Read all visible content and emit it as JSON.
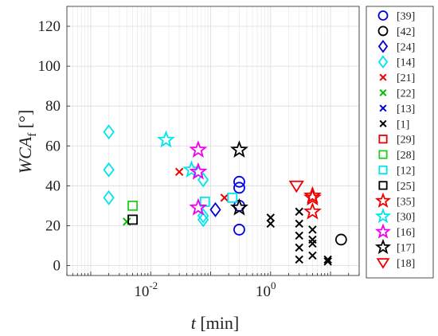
{
  "chart_data": {
    "type": "scatter",
    "x_scale": "log",
    "xlim": [
      0.0004,
      30
    ],
    "ylim": [
      -5,
      130
    ],
    "x_ticks": [
      0.01,
      1
    ],
    "x_tick_labels": [
      {
        "base": "10",
        "exp": "-2"
      },
      {
        "base": "10",
        "exp": "0"
      }
    ],
    "y_ticks": [
      0,
      20,
      40,
      60,
      80,
      100,
      120
    ],
    "y_tick_labels": [
      "0",
      "20",
      "40",
      "60",
      "80",
      "100",
      "120"
    ],
    "xlabel": {
      "var": "t",
      "unit": " [min]"
    },
    "ylabel": {
      "var": "WCA",
      "sub": "f",
      "unit": " [°]"
    },
    "grid": true,
    "legend_position": "right-outside",
    "series": [
      {
        "name": "[39]",
        "marker": "circle",
        "color": "#0000ee",
        "points": [
          [
            0.3,
            42
          ],
          [
            0.3,
            39
          ],
          [
            0.3,
            30
          ],
          [
            0.3,
            18
          ]
        ]
      },
      {
        "name": "[42]",
        "marker": "circle",
        "color": "#000000",
        "points": [
          [
            15,
            13
          ]
        ]
      },
      {
        "name": "[24]",
        "marker": "diamond",
        "color": "#0000cc",
        "points": [
          [
            0.12,
            28
          ]
        ]
      },
      {
        "name": "[14]",
        "marker": "diamond",
        "color": "#00e5ee",
        "points": [
          [
            0.002,
            67
          ],
          [
            0.002,
            48
          ],
          [
            0.002,
            34
          ],
          [
            0.075,
            43
          ],
          [
            0.075,
            25
          ],
          [
            0.075,
            23
          ]
        ]
      },
      {
        "name": "[21]",
        "marker": "x",
        "color": "#ee0000",
        "points": [
          [
            0.03,
            47
          ],
          [
            0.17,
            34
          ]
        ]
      },
      {
        "name": "[22]",
        "marker": "x",
        "color": "#00bb00",
        "points": [
          [
            0.004,
            22
          ]
        ]
      },
      {
        "name": "[13]",
        "marker": "x",
        "color": "#0000cc",
        "points": []
      },
      {
        "name": "[1]",
        "marker": "x",
        "color": "#000000",
        "points": [
          [
            1,
            24
          ],
          [
            1,
            21
          ],
          [
            3,
            27
          ],
          [
            3,
            21
          ],
          [
            3,
            15
          ],
          [
            3,
            9
          ],
          [
            3,
            3
          ],
          [
            5,
            18
          ],
          [
            5,
            13
          ],
          [
            5,
            11
          ],
          [
            5,
            5
          ],
          [
            9,
            3
          ],
          [
            9,
            2
          ]
        ]
      },
      {
        "name": "[29]",
        "marker": "square",
        "color": "#ee0000",
        "points": []
      },
      {
        "name": "[28]",
        "marker": "square",
        "color": "#22cc22",
        "points": [
          [
            0.005,
            30
          ]
        ]
      },
      {
        "name": "[12]",
        "marker": "square",
        "color": "#00e5ee",
        "points": [
          [
            0.08,
            32
          ],
          [
            0.23,
            34
          ]
        ]
      },
      {
        "name": "[25]",
        "marker": "square",
        "color": "#000000",
        "points": [
          [
            0.005,
            23
          ]
        ]
      },
      {
        "name": "[35]",
        "marker": "star",
        "color": "#ee0000",
        "points": [
          [
            5,
            35
          ],
          [
            5,
            34
          ],
          [
            5,
            27
          ]
        ]
      },
      {
        "name": "[30]",
        "marker": "star",
        "color": "#00e5ee",
        "points": [
          [
            0.018,
            63
          ],
          [
            0.048,
            48
          ]
        ]
      },
      {
        "name": "[16]",
        "marker": "star",
        "color": "#ee00ee",
        "points": [
          [
            0.062,
            58
          ],
          [
            0.062,
            47
          ],
          [
            0.062,
            29
          ]
        ]
      },
      {
        "name": "[17]",
        "marker": "star",
        "color": "#000000",
        "points": [
          [
            0.3,
            58
          ],
          [
            0.3,
            29
          ]
        ]
      },
      {
        "name": "[18]",
        "marker": "triangle-down",
        "color": "#ee0000",
        "points": [
          [
            2.7,
            40
          ]
        ]
      }
    ]
  }
}
